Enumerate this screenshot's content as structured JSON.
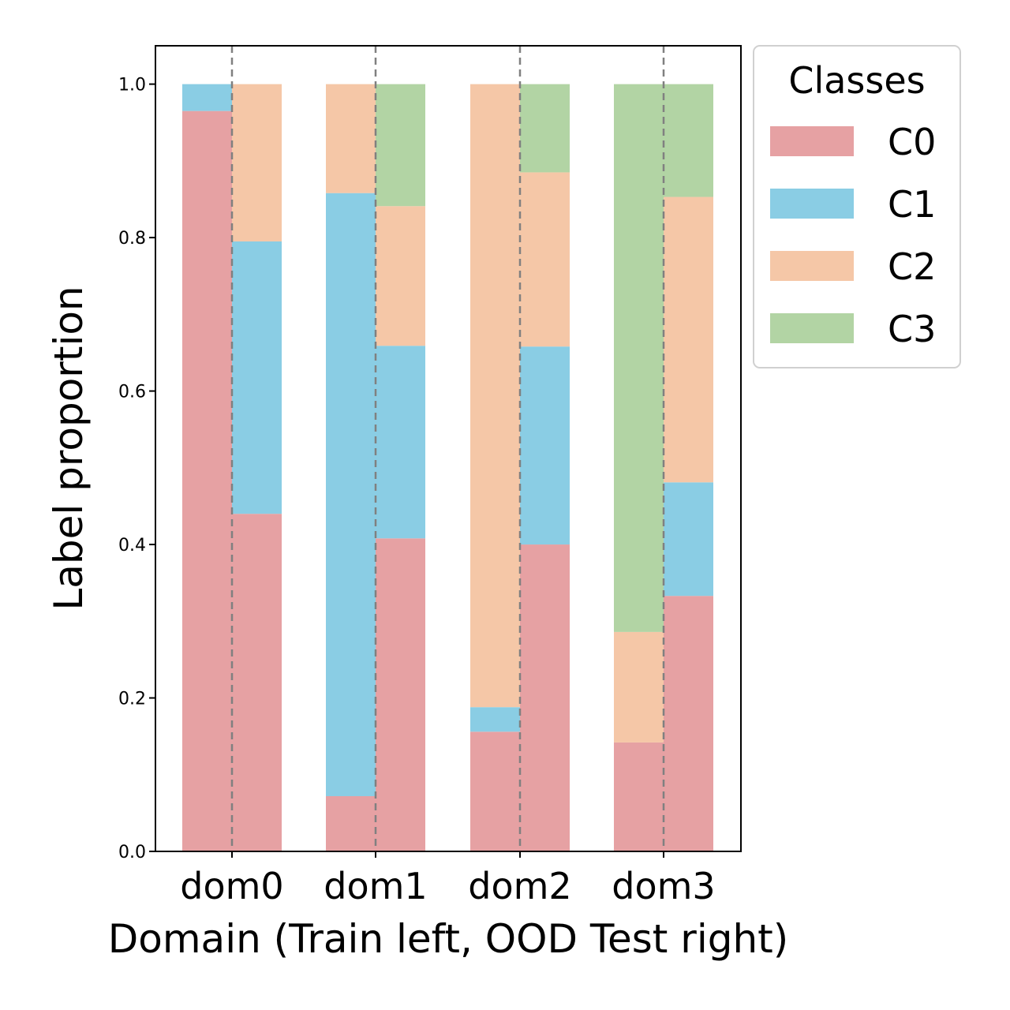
{
  "chart_data": {
    "type": "bar",
    "stacked": true,
    "grouping": "two stacked bars per domain: train (left) and OOD test (right)",
    "xlabel": "Domain (Train left, OOD Test right)",
    "ylabel": "Label proportion",
    "categories": [
      "dom0",
      "dom1",
      "dom2",
      "dom3"
    ],
    "ylim": [
      0,
      1.05
    ],
    "yticks": [
      "0.0",
      "0.2",
      "0.4",
      "0.6",
      "0.8",
      "1.0"
    ],
    "grid": false,
    "legend": {
      "title": "Classes",
      "placement": "outside-top-right"
    },
    "series": [
      {
        "name": "C0",
        "color": "#e6a1a3",
        "train": [
          0.965,
          0.072,
          0.156,
          0.142
        ],
        "test": [
          0.44,
          0.408,
          0.4,
          0.333
        ]
      },
      {
        "name": "C1",
        "color": "#8acde4",
        "train": [
          0.035,
          0.786,
          0.032,
          0.0
        ],
        "test": [
          0.355,
          0.251,
          0.258,
          0.148
        ]
      },
      {
        "name": "C2",
        "color": "#f5c7a7",
        "train": [
          0.0,
          0.142,
          0.812,
          0.144
        ],
        "test": [
          0.205,
          0.182,
          0.227,
          0.372
        ]
      },
      {
        "name": "C3",
        "color": "#b2d4a4",
        "train": [
          0.0,
          0.0,
          0.0,
          0.714
        ],
        "test": [
          0.0,
          0.159,
          0.115,
          0.147
        ]
      }
    ],
    "divider_style": "dashed gray vertical line at each domain center"
  }
}
